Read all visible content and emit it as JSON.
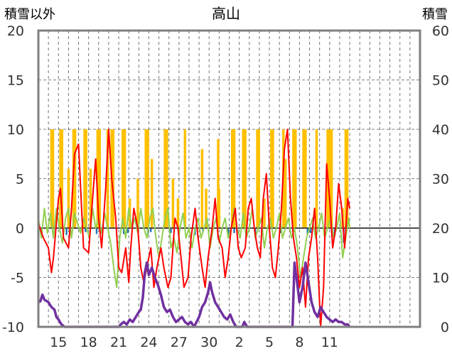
{
  "chart_data": {
    "type": "line",
    "title": "高山",
    "ylabel_left": "積雪以外",
    "ylabel_right": "積雪",
    "ylim_left": [
      -10,
      20
    ],
    "ylim_right": [
      0,
      60
    ],
    "yticks_left": [
      "20",
      "15",
      "10",
      "5",
      "0",
      "-5",
      "-10"
    ],
    "yticks_right": [
      "60",
      "50",
      "40",
      "30",
      "20",
      "10",
      "0"
    ],
    "xlim": [
      0,
      38
    ],
    "xticks": [
      {
        "pos": 2,
        "label": "15"
      },
      {
        "pos": 5,
        "label": "18"
      },
      {
        "pos": 8,
        "label": "21"
      },
      {
        "pos": 11,
        "label": "24"
      },
      {
        "pos": 14,
        "label": "27"
      },
      {
        "pos": 17,
        "label": "30"
      },
      {
        "pos": 20,
        "label": "2"
      },
      {
        "pos": 23,
        "label": "5"
      },
      {
        "pos": 26,
        "label": "8"
      },
      {
        "pos": 29,
        "label": "11"
      }
    ],
    "colors": {
      "precip": "#FFC000",
      "snowfall": "#1F77B4",
      "temp": "#FF0000",
      "temp_green": "#92D050",
      "snow_depth": "#7030A0",
      "frame": "#7f7f7f",
      "grid": "#7f7f7f"
    },
    "bars_precip": [
      [
        1.3,
        10
      ],
      [
        1.45,
        10
      ],
      [
        2.2,
        10
      ],
      [
        2.35,
        10
      ],
      [
        3.0,
        6
      ],
      [
        3.5,
        10
      ],
      [
        3.65,
        10
      ],
      [
        4.6,
        10
      ],
      [
        4.75,
        10
      ],
      [
        5.2,
        6
      ],
      [
        5.9,
        10
      ],
      [
        6.1,
        10
      ],
      [
        6.9,
        10
      ],
      [
        7.3,
        10
      ],
      [
        7.45,
        10
      ],
      [
        8.4,
        10
      ],
      [
        8.6,
        10
      ],
      [
        9.1,
        3
      ],
      [
        9.9,
        5
      ],
      [
        10.7,
        10
      ],
      [
        10.9,
        10
      ],
      [
        11.3,
        7
      ],
      [
        12.6,
        10
      ],
      [
        12.8,
        10
      ],
      [
        13.4,
        5
      ],
      [
        13.9,
        3
      ],
      [
        14.6,
        10
      ],
      [
        16.3,
        8
      ],
      [
        16.7,
        4
      ],
      [
        17.9,
        9
      ],
      [
        18.0,
        4
      ],
      [
        19.3,
        10
      ],
      [
        19.5,
        10
      ],
      [
        20.4,
        10
      ],
      [
        20.6,
        10
      ],
      [
        21.8,
        10
      ],
      [
        21.95,
        10
      ],
      [
        22.5,
        3
      ],
      [
        23.2,
        10
      ],
      [
        23.35,
        10
      ],
      [
        24.4,
        10
      ],
      [
        24.6,
        7
      ],
      [
        25.4,
        10
      ],
      [
        25.6,
        10
      ],
      [
        26.4,
        10
      ],
      [
        26.6,
        10
      ],
      [
        27.7,
        10
      ],
      [
        28.8,
        10
      ],
      [
        29.0,
        10
      ],
      [
        29.2,
        10
      ],
      [
        30.3,
        2
      ],
      [
        30.6,
        10
      ],
      [
        30.75,
        10
      ]
    ],
    "bars_snowfall": [
      [
        2.8,
        -0.7
      ],
      [
        4.7,
        -0.4
      ],
      [
        5.8,
        -0.6
      ],
      [
        8.5,
        -0.6
      ],
      [
        8.9,
        -0.5
      ],
      [
        10.9,
        -0.7
      ],
      [
        11.2,
        -0.4
      ],
      [
        13.2,
        -0.5
      ],
      [
        15.6,
        -0.7
      ],
      [
        16.4,
        -0.4
      ],
      [
        18.9,
        -0.7
      ],
      [
        19.5,
        -0.5
      ],
      [
        21.6,
        -0.6
      ],
      [
        24.1,
        -0.5
      ],
      [
        26.8,
        -0.6
      ],
      [
        27.1,
        -0.5
      ],
      [
        29.5,
        -0.8
      ],
      [
        30.4,
        -1.5
      ]
    ],
    "series_temp": [
      [
        0,
        0.5
      ],
      [
        0.5,
        -1
      ],
      [
        1.0,
        -2
      ],
      [
        1.3,
        -4.5
      ],
      [
        1.5,
        -3
      ],
      [
        2.0,
        3
      ],
      [
        2.2,
        4
      ],
      [
        2.5,
        -1
      ],
      [
        3.0,
        -2
      ],
      [
        3.3,
        2
      ],
      [
        3.6,
        7.5
      ],
      [
        4.0,
        8.5
      ],
      [
        4.3,
        2
      ],
      [
        4.5,
        -2
      ],
      [
        5.0,
        -2.5
      ],
      [
        5.4,
        3
      ],
      [
        5.7,
        7
      ],
      [
        6.0,
        1
      ],
      [
        6.3,
        -2
      ],
      [
        6.7,
        4
      ],
      [
        7.0,
        10
      ],
      [
        7.3,
        5
      ],
      [
        7.7,
        1
      ],
      [
        8.0,
        -4
      ],
      [
        8.3,
        -4.5
      ],
      [
        8.7,
        -2
      ],
      [
        9.0,
        -5.5
      ],
      [
        9.2,
        -2
      ],
      [
        9.5,
        2
      ],
      [
        9.9,
        0
      ],
      [
        10.2,
        -4
      ],
      [
        10.5,
        -5.5
      ],
      [
        10.9,
        -3.5
      ],
      [
        11.2,
        -2
      ],
      [
        11.5,
        -6
      ],
      [
        11.8,
        -4
      ],
      [
        12.2,
        -2
      ],
      [
        12.5,
        -4
      ],
      [
        12.9,
        -6
      ],
      [
        13.2,
        -5
      ],
      [
        13.6,
        1
      ],
      [
        13.9,
        0
      ],
      [
        14.2,
        -3
      ],
      [
        14.5,
        -6
      ],
      [
        14.9,
        -5
      ],
      [
        15.2,
        -1
      ],
      [
        15.6,
        2
      ],
      [
        15.9,
        -1
      ],
      [
        16.3,
        -4
      ],
      [
        16.6,
        -6
      ],
      [
        16.9,
        -3
      ],
      [
        17.3,
        0
      ],
      [
        17.6,
        3
      ],
      [
        17.9,
        -1
      ],
      [
        18.3,
        -2
      ],
      [
        18.6,
        -5
      ],
      [
        18.9,
        -3
      ],
      [
        19.2,
        0
      ],
      [
        19.6,
        2
      ],
      [
        19.9,
        -2
      ],
      [
        20.2,
        -3
      ],
      [
        20.6,
        -2
      ],
      [
        20.9,
        2
      ],
      [
        21.2,
        3
      ],
      [
        21.5,
        0
      ],
      [
        21.8,
        -2
      ],
      [
        22.1,
        -3
      ],
      [
        22.4,
        3
      ],
      [
        22.7,
        5.5
      ],
      [
        23.0,
        0
      ],
      [
        23.3,
        -4
      ],
      [
        23.6,
        -5
      ],
      [
        23.9,
        -2
      ],
      [
        24.2,
        2
      ],
      [
        24.5,
        8
      ],
      [
        24.8,
        10
      ],
      [
        25.1,
        3
      ],
      [
        25.4,
        -1
      ],
      [
        25.7,
        -3
      ],
      [
        26.0,
        -6
      ],
      [
        26.3,
        -4
      ],
      [
        26.6,
        -8
      ],
      [
        26.9,
        -3
      ],
      [
        27.2,
        -1
      ],
      [
        27.5,
        2
      ],
      [
        27.8,
        -3
      ],
      [
        28.1,
        -10
      ],
      [
        28.4,
        -6
      ],
      [
        28.7,
        6.5
      ],
      [
        29.0,
        3
      ],
      [
        29.3,
        -2
      ],
      [
        29.6,
        0
      ],
      [
        29.9,
        4.5
      ],
      [
        30.2,
        2
      ],
      [
        30.5,
        -2
      ],
      [
        30.8,
        3
      ],
      [
        31.0,
        2
      ]
    ],
    "series_temp_green": [
      [
        0,
        1
      ],
      [
        0.3,
        -1
      ],
      [
        0.6,
        2
      ],
      [
        0.9,
        -0.5
      ],
      [
        1.2,
        1.5
      ],
      [
        1.5,
        -1
      ],
      [
        1.8,
        2
      ],
      [
        2.1,
        0
      ],
      [
        2.4,
        -1.5
      ],
      [
        2.7,
        1
      ],
      [
        3.0,
        2
      ],
      [
        3.3,
        -1
      ],
      [
        3.6,
        1.5
      ],
      [
        3.9,
        0.5
      ],
      [
        4.2,
        -0.5
      ],
      [
        4.5,
        1
      ],
      [
        4.8,
        0
      ],
      [
        5.1,
        -1
      ],
      [
        5.4,
        2
      ],
      [
        5.7,
        0
      ],
      [
        6.0,
        1
      ],
      [
        6.3,
        -0.5
      ],
      [
        6.6,
        1.5
      ],
      [
        6.9,
        0
      ],
      [
        7.2,
        -1.5
      ],
      [
        7.5,
        -4
      ],
      [
        7.8,
        -6
      ],
      [
        8.1,
        -1
      ],
      [
        8.4,
        1
      ],
      [
        8.7,
        -1
      ],
      [
        9.0,
        2
      ],
      [
        9.3,
        0
      ],
      [
        9.6,
        1
      ],
      [
        9.9,
        -0.5
      ],
      [
        10.2,
        2
      ],
      [
        10.5,
        0
      ],
      [
        10.8,
        -1
      ],
      [
        11.1,
        1
      ],
      [
        11.4,
        2
      ],
      [
        11.7,
        -1
      ],
      [
        12.0,
        -3
      ],
      [
        12.3,
        -1
      ],
      [
        12.6,
        1
      ],
      [
        12.9,
        2
      ],
      [
        13.2,
        -2
      ],
      [
        13.5,
        -1
      ],
      [
        13.8,
        -2.5
      ],
      [
        14.1,
        0
      ],
      [
        14.4,
        1.5
      ],
      [
        14.7,
        -1
      ],
      [
        15.0,
        0
      ],
      [
        15.3,
        -2
      ],
      [
        15.6,
        0
      ],
      [
        15.9,
        1
      ],
      [
        16.2,
        -1
      ],
      [
        16.5,
        0
      ],
      [
        16.8,
        1
      ],
      [
        17.1,
        -2
      ],
      [
        17.4,
        0
      ],
      [
        17.7,
        1
      ],
      [
        18.0,
        -1.5
      ],
      [
        18.3,
        0
      ],
      [
        18.6,
        1
      ],
      [
        18.9,
        -1
      ],
      [
        19.2,
        0
      ],
      [
        19.5,
        2
      ],
      [
        19.8,
        0
      ],
      [
        20.1,
        -1
      ],
      [
        20.4,
        1.5
      ],
      [
        20.7,
        -1
      ],
      [
        21.0,
        0
      ],
      [
        21.3,
        2
      ],
      [
        21.6,
        -1
      ],
      [
        21.9,
        0
      ],
      [
        22.2,
        1
      ],
      [
        22.5,
        -2
      ],
      [
        22.8,
        0
      ],
      [
        23.1,
        1
      ],
      [
        23.4,
        -1
      ],
      [
        23.7,
        0
      ],
      [
        24.0,
        1.5
      ],
      [
        24.3,
        -1
      ],
      [
        24.6,
        0
      ],
      [
        24.9,
        1
      ],
      [
        25.2,
        -1
      ],
      [
        25.5,
        0
      ],
      [
        25.8,
        -2
      ],
      [
        26.1,
        -5
      ],
      [
        26.4,
        -3
      ],
      [
        26.7,
        -1
      ],
      [
        27.0,
        0
      ],
      [
        27.3,
        1
      ],
      [
        27.6,
        -1
      ],
      [
        27.9,
        0
      ],
      [
        28.2,
        1.5
      ],
      [
        28.5,
        -1
      ],
      [
        28.8,
        0
      ],
      [
        29.1,
        1
      ],
      [
        29.4,
        -1
      ],
      [
        29.7,
        0
      ],
      [
        30.0,
        1.5
      ],
      [
        30.3,
        -3
      ],
      [
        30.6,
        -1
      ],
      [
        30.9,
        1
      ],
      [
        31.0,
        0
      ]
    ],
    "series_snow_depth": [
      [
        0,
        5
      ],
      [
        0.2,
        5.2
      ],
      [
        0.4,
        6.5
      ],
      [
        0.6,
        5.5
      ],
      [
        1.0,
        5
      ],
      [
        1.3,
        4
      ],
      [
        1.6,
        3.5
      ],
      [
        1.8,
        2
      ],
      [
        2.0,
        1.5
      ],
      [
        2.3,
        0.5
      ],
      [
        2.6,
        0
      ],
      [
        8.0,
        0
      ],
      [
        8.2,
        0.5
      ],
      [
        8.5,
        1
      ],
      [
        8.8,
        0.5
      ],
      [
        9.1,
        1.5
      ],
      [
        9.4,
        1
      ],
      [
        9.7,
        2
      ],
      [
        10.0,
        3
      ],
      [
        10.2,
        3.5
      ],
      [
        10.4,
        6
      ],
      [
        10.6,
        11
      ],
      [
        10.8,
        13
      ],
      [
        11.0,
        10.5
      ],
      [
        11.3,
        12
      ],
      [
        11.6,
        10
      ],
      [
        11.9,
        8.5
      ],
      [
        12.2,
        6.5
      ],
      [
        12.5,
        4
      ],
      [
        12.8,
        3
      ],
      [
        13.1,
        3.5
      ],
      [
        13.4,
        2
      ],
      [
        13.7,
        1
      ],
      [
        14.0,
        1.5
      ],
      [
        14.3,
        2
      ],
      [
        14.6,
        1
      ],
      [
        14.9,
        0.5
      ],
      [
        15.2,
        1
      ],
      [
        15.5,
        0
      ],
      [
        16.0,
        2
      ],
      [
        16.3,
        4
      ],
      [
        16.6,
        5
      ],
      [
        16.9,
        7
      ],
      [
        17.1,
        9
      ],
      [
        17.3,
        7
      ],
      [
        17.6,
        5
      ],
      [
        17.9,
        4
      ],
      [
        18.2,
        3
      ],
      [
        18.5,
        2
      ],
      [
        18.8,
        1.5
      ],
      [
        19.1,
        2.5
      ],
      [
        19.4,
        1
      ],
      [
        19.7,
        0
      ],
      [
        20.0,
        0
      ],
      [
        20.3,
        0
      ],
      [
        20.5,
        1
      ],
      [
        20.8,
        0
      ],
      [
        25.3,
        0
      ],
      [
        25.5,
        13
      ],
      [
        25.7,
        10
      ],
      [
        26.0,
        5
      ],
      [
        26.3,
        8
      ],
      [
        26.6,
        13
      ],
      [
        26.9,
        9
      ],
      [
        27.2,
        5
      ],
      [
        27.5,
        3
      ],
      [
        27.8,
        2
      ],
      [
        28.1,
        4
      ],
      [
        28.4,
        3
      ],
      [
        28.7,
        2
      ],
      [
        29.0,
        1.5
      ],
      [
        29.3,
        1
      ],
      [
        29.6,
        1.5
      ],
      [
        29.9,
        1
      ],
      [
        30.2,
        1
      ],
      [
        30.5,
        0.5
      ],
      [
        30.8,
        0.5
      ],
      [
        31.0,
        0
      ]
    ]
  }
}
